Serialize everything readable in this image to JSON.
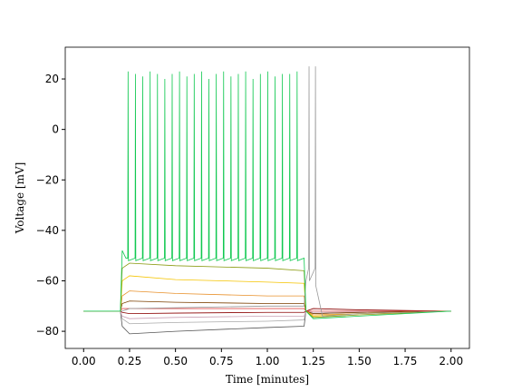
{
  "chart_data": {
    "type": "line",
    "xlabel": "Time [minutes]",
    "ylabel": "Voltage [mV]",
    "xlim": [
      -0.1,
      2.1
    ],
    "ylim": [
      -86.8,
      32.6
    ],
    "xticks": [
      {
        "value": 0,
        "label": "0.00"
      },
      {
        "value": 0.25,
        "label": "0.25"
      },
      {
        "value": 0.5,
        "label": "0.50"
      },
      {
        "value": 0.75,
        "label": "0.75"
      },
      {
        "value": 1,
        "label": "1.00"
      },
      {
        "value": 1.25,
        "label": "1.25"
      },
      {
        "value": 1.5,
        "label": "1.50"
      },
      {
        "value": 1.75,
        "label": "1.75"
      },
      {
        "value": 2,
        "label": "2.00"
      }
    ],
    "yticks": [
      20,
      0,
      {
        "value": -20,
        "label": "−20"
      },
      {
        "value": -40,
        "label": "−40"
      },
      {
        "value": -60,
        "label": "−60"
      },
      {
        "value": -80,
        "label": "−80"
      }
    ],
    "series": [
      {
        "color": "#555555",
        "x": [
          0,
          0.2,
          0.21,
          0.25,
          0.5,
          1.0,
          1.2,
          1.21,
          1.25,
          1.5,
          2.0
        ],
        "values": [
          -72,
          -72,
          -78,
          -81,
          -80,
          -78.5,
          -78,
          -72,
          -73,
          -72.5,
          -72
        ]
      },
      {
        "color": "#aaaaaa",
        "x": [
          0,
          0.2,
          0.21,
          0.25,
          0.5,
          1.0,
          1.2,
          1.21,
          1.25,
          1.5,
          2.0
        ],
        "values": [
          -72,
          -72,
          -75,
          -77,
          -76.5,
          -76,
          -75.5,
          -72,
          -73,
          -72.5,
          -72
        ]
      },
      {
        "color": "#c8a0b4",
        "x": [
          0,
          0.2,
          0.21,
          0.25,
          0.5,
          1.0,
          1.2,
          1.21,
          1.25,
          1.5,
          2.0
        ],
        "values": [
          -72,
          -72,
          -74,
          -75,
          -74.5,
          -74,
          -74,
          -72,
          -72.5,
          -72.3,
          -72
        ]
      },
      {
        "color": "#8b0000",
        "x": [
          0,
          0.2,
          0.21,
          0.25,
          0.5,
          1.0,
          1.2,
          1.21,
          1.25,
          1.5,
          2.0
        ],
        "values": [
          -72,
          -72,
          -72.5,
          -73,
          -72.8,
          -72.5,
          -72.5,
          -72,
          -71,
          -71.5,
          -72
        ]
      },
      {
        "color": "#e05050",
        "x": [
          0,
          0.2,
          0.21,
          0.25,
          0.5,
          1.0,
          1.2,
          1.21,
          1.25,
          1.5,
          2.0
        ],
        "values": [
          -72,
          -72,
          -71,
          -71,
          -71,
          -71,
          -71,
          -72,
          -72,
          -72,
          -72
        ]
      },
      {
        "color": "#7b3f00",
        "x": [
          0,
          0.2,
          0.21,
          0.25,
          0.5,
          1.0,
          1.2,
          1.21,
          1.25,
          1.5,
          2.0
        ],
        "values": [
          -72,
          -72,
          -69,
          -68,
          -68.5,
          -69,
          -69,
          -72,
          -73,
          -72.5,
          -72
        ]
      },
      {
        "color": "#e8902a",
        "x": [
          0,
          0.2,
          0.21,
          0.25,
          0.5,
          1.0,
          1.2,
          1.21,
          1.25,
          1.5,
          2.0
        ],
        "values": [
          -72,
          -72,
          -66,
          -64,
          -65,
          -66,
          -66,
          -72,
          -73.5,
          -73,
          -72
        ]
      },
      {
        "color": "#f5c400",
        "x": [
          0,
          0.2,
          0.21,
          0.25,
          0.5,
          1.0,
          1.2,
          1.21,
          1.25,
          1.5,
          2.0
        ],
        "values": [
          -72,
          -72,
          -60,
          -58,
          -59.5,
          -60.5,
          -61,
          -72,
          -74,
          -73,
          -72
        ]
      },
      {
        "color": "#8a9a10",
        "x": [
          0,
          0.2,
          0.21,
          0.25,
          0.5,
          1.0,
          1.2,
          1.21,
          1.25,
          1.5,
          2.0
        ],
        "values": [
          -72,
          -72,
          -55,
          -53,
          -54,
          -55,
          -56,
          -72,
          -74.5,
          -73.5,
          -72
        ]
      },
      {
        "color": "#999999",
        "x": [
          0,
          0.2,
          0.21,
          0.25,
          1.0,
          1.2,
          1.21,
          1.225,
          1.227,
          1.229,
          1.26,
          1.262,
          1.264,
          1.3,
          1.5,
          2.0
        ],
        "values": [
          -72,
          -72,
          -72,
          -71,
          -70,
          -70,
          -60,
          -55,
          25,
          -60,
          -55,
          25,
          -62,
          -74,
          -73,
          -72
        ]
      },
      {
        "color": "#10c850",
        "x": [
          0,
          0.2,
          0.21,
          0.23,
          0.24,
          0.242,
          0.244,
          0.28,
          0.282,
          0.284,
          0.32,
          0.322,
          0.324,
          0.36,
          0.362,
          0.364,
          0.4,
          0.402,
          0.404,
          0.44,
          0.442,
          0.444,
          0.48,
          0.482,
          0.484,
          0.52,
          0.522,
          0.524,
          0.56,
          0.562,
          0.564,
          0.6,
          0.602,
          0.604,
          0.64,
          0.642,
          0.644,
          0.68,
          0.682,
          0.684,
          0.72,
          0.722,
          0.724,
          0.76,
          0.762,
          0.764,
          0.8,
          0.802,
          0.804,
          0.84,
          0.842,
          0.844,
          0.88,
          0.882,
          0.884,
          0.92,
          0.922,
          0.924,
          0.96,
          0.962,
          0.964,
          1.0,
          1.002,
          1.004,
          1.04,
          1.042,
          1.044,
          1.08,
          1.082,
          1.084,
          1.12,
          1.122,
          1.124,
          1.16,
          1.162,
          1.164,
          1.2,
          1.21,
          1.25,
          1.5,
          2.0
        ],
        "values": [
          -72,
          -72,
          -48,
          -51,
          -51,
          23,
          -52,
          -51,
          22,
          -52,
          -51,
          21,
          -52,
          -51,
          23,
          -52,
          -51,
          22,
          -52,
          -51,
          20,
          -52,
          -51,
          22,
          -52,
          -51,
          23,
          -52,
          -51,
          21,
          -52,
          -51,
          22,
          -52,
          -51,
          23,
          -52,
          -51,
          20,
          -52,
          -51,
          22,
          -52,
          -51,
          23,
          -52,
          -51,
          21,
          -52,
          -51,
          22,
          -52,
          -51,
          23,
          -52,
          -51,
          20,
          -52,
          -51,
          22,
          -52,
          -51,
          23,
          -52,
          -51,
          21,
          -52,
          -51,
          22,
          -52,
          -51,
          22,
          -52,
          -51,
          23,
          -52,
          -51,
          -72,
          -75,
          -74,
          -72
        ]
      }
    ]
  }
}
